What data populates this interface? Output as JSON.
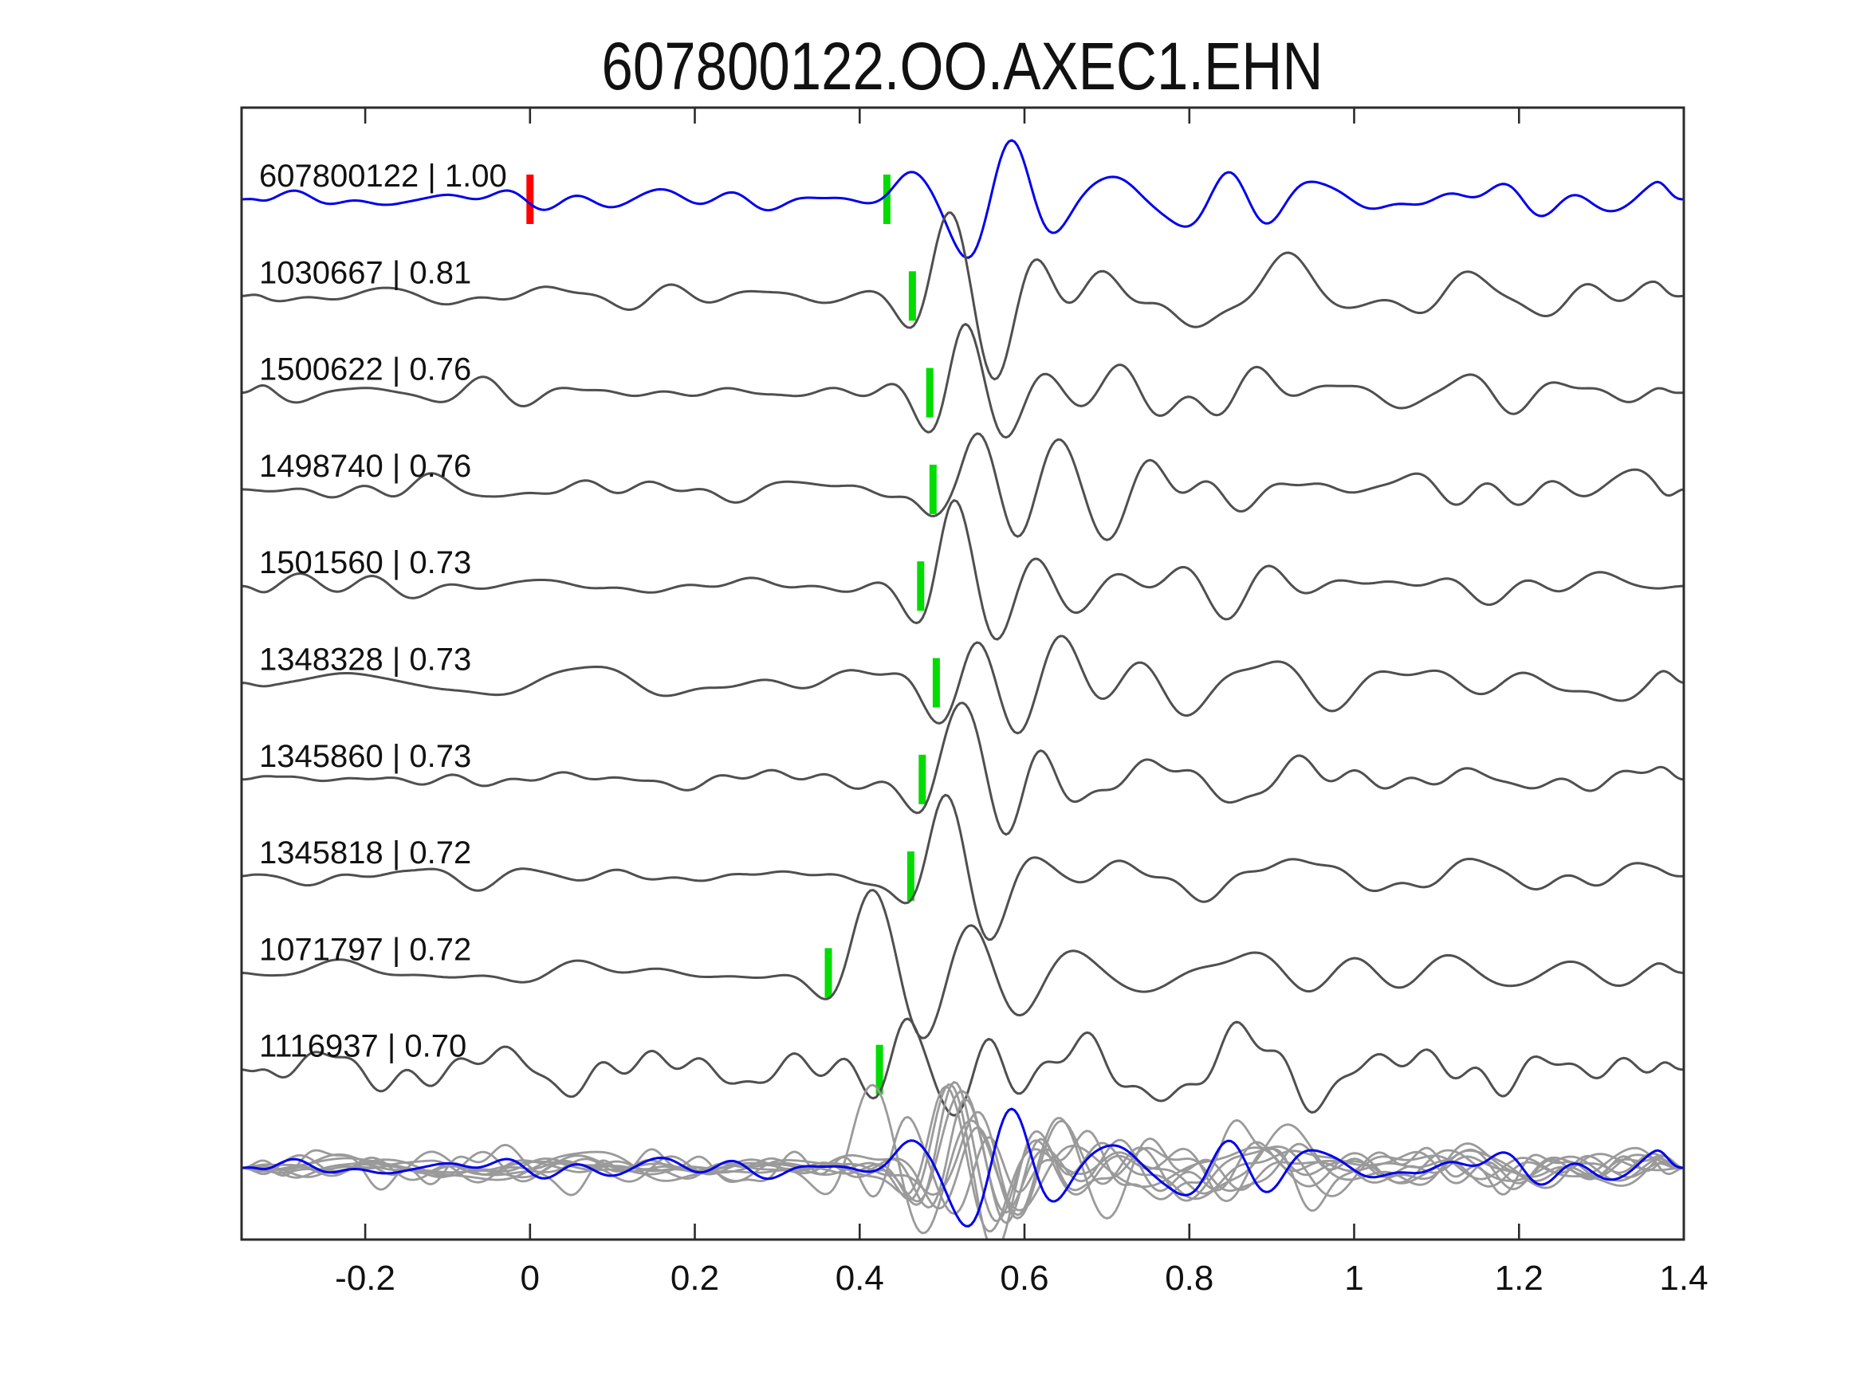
{
  "title": "607800122.OO.AXEC1.EHN",
  "colors": {
    "template_trace": "#0000ee",
    "detection_trace": "#4f4f4f",
    "overlay_trace": "#9a9a9a",
    "pick_marker": "#00dc00",
    "template_marker": "#ff0000",
    "axis": "#2b2b2b",
    "text": "#111111",
    "background": "#ffffff"
  },
  "chart_data": {
    "type": "line",
    "title": "607800122.OO.AXEC1.EHN",
    "xlabel": "",
    "ylabel": "",
    "xlim": [
      -0.35,
      1.4
    ],
    "x_ticks": [
      -0.2,
      0,
      0.2,
      0.4,
      0.6,
      0.8,
      1,
      1.2,
      1.4
    ],
    "x_tick_labels": [
      "-0.2",
      "0",
      "0.2",
      "0.4",
      "0.6",
      "0.8",
      "1",
      "1.2",
      "1.4"
    ],
    "grid": false,
    "legend": "none",
    "template_marker_time": 0,
    "label_separator": " | ",
    "traces": [
      {
        "id": "607800122",
        "cc": "1.00",
        "role": "template",
        "pick_time": 0.433,
        "seed": 11,
        "noise": 6.0,
        "coda": 15,
        "A": 62,
        "F": 8.0,
        "c": 0.155,
        "sl": 0.09,
        "sr": 0.16,
        "a2": 16,
        "c2": 0.5,
        "F2": 5.0
      },
      {
        "id": "1030667",
        "cc": "0.81",
        "role": "detection",
        "pick_time": 0.464,
        "seed": 22,
        "noise": 7.0,
        "coda": 17,
        "A": 80,
        "F": 9.3,
        "c": 0.045,
        "sl": 0.045,
        "sr": 0.1,
        "a2": 42,
        "c2": 0.4,
        "F2": 4.6
      },
      {
        "id": "1500622",
        "cc": "0.76",
        "role": "detection",
        "pick_time": 0.485,
        "seed": 33,
        "noise": 7.0,
        "coda": 17,
        "A": 80,
        "F": 9.3,
        "c": 0.045,
        "sl": 0.045,
        "sr": 0.1,
        "a2": 28,
        "c2": 0.38,
        "F2": 5.0
      },
      {
        "id": "1498740",
        "cc": "0.76",
        "role": "detection",
        "pick_time": 0.489,
        "seed": 44,
        "noise": 8.0,
        "coda": 18,
        "A": 84,
        "F": 9.0,
        "c": 0.045,
        "sl": 0.045,
        "sr": 0.1,
        "a2": 26,
        "c2": 0.42,
        "F2": 4.8
      },
      {
        "id": "1501560",
        "cc": "0.73",
        "role": "detection",
        "pick_time": 0.474,
        "seed": 55,
        "noise": 6.5,
        "coda": 16,
        "A": 84,
        "F": 9.2,
        "c": 0.045,
        "sl": 0.045,
        "sr": 0.1,
        "a2": 24,
        "c2": 0.4,
        "F2": 5.0
      },
      {
        "id": "1348328",
        "cc": "0.73",
        "role": "detection",
        "pick_time": 0.493,
        "seed": 66,
        "noise": 9.0,
        "coda": 18,
        "A": 72,
        "F": 9.4,
        "c": 0.045,
        "sl": 0.045,
        "sr": 0.1,
        "a2": 28,
        "c2": 0.36,
        "F2": 5.2
      },
      {
        "id": "1345860",
        "cc": "0.73",
        "role": "detection",
        "pick_time": 0.476,
        "seed": 77,
        "noise": 5.5,
        "coda": 15,
        "A": 86,
        "F": 9.0,
        "c": 0.045,
        "sl": 0.045,
        "sr": 0.1,
        "a2": 24,
        "c2": 0.42,
        "F2": 4.8
      },
      {
        "id": "1345818",
        "cc": "0.72",
        "role": "detection",
        "pick_time": 0.462,
        "seed": 88,
        "noise": 6.5,
        "coda": 16,
        "A": 80,
        "F": 9.1,
        "c": 0.045,
        "sl": 0.045,
        "sr": 0.1,
        "a2": 24,
        "c2": 0.4,
        "F2": 5.0
      },
      {
        "id": "1071797",
        "cc": "0.72",
        "role": "detection",
        "pick_time": 0.362,
        "seed": 99,
        "noise": 8.5,
        "coda": 22,
        "A": 76,
        "F": 7.6,
        "c": 0.055,
        "sl": 0.05,
        "sr": 0.13,
        "a2": 34,
        "c2": 0.45,
        "F2": 4.2
      },
      {
        "id": "1116937",
        "cc": "0.70",
        "role": "detection",
        "pick_time": 0.424,
        "seed": 111,
        "noise": 13.0,
        "coda": 18,
        "A": 58,
        "F": 10.0,
        "c": 0.04,
        "sl": 0.04,
        "sr": 0.09,
        "a2": 26,
        "c2": 0.4,
        "F2": 5.5
      }
    ],
    "overlay_row": {
      "description": "all detection traces overlaid in gray with template trace in blue on top",
      "gray_trace_count": 9,
      "blue_trace_id": "607800122"
    }
  }
}
